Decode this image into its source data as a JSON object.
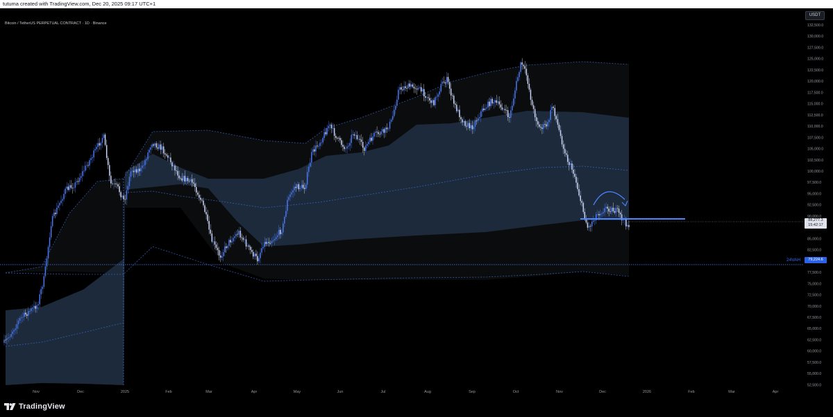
{
  "header": {
    "created_line": "tutuma created with TradingView.com, Dec 20, 2025 09:17 UTC+1"
  },
  "legend": {
    "symbol": "Bitcoin / TetherUS PERPETUAL CONTRACT · 1D · Binance"
  },
  "price_scale": {
    "currency": "USDT",
    "ticks": [
      "132,500.0",
      "130,000.0",
      "127,500.0",
      "125,000.0",
      "122,500.0",
      "120,000.0",
      "117,500.0",
      "115,000.0",
      "112,500.0",
      "110,000.0",
      "107,500.0",
      "105,000.0",
      "102,500.0",
      "100,000.0",
      "97,500.0",
      "95,000.0",
      "92,500.0",
      "90,000.0",
      "87,500.0",
      "85,000.0",
      "82,500.0",
      "80,000.0",
      "77,500.0",
      "75,000.0",
      "72,500.0",
      "70,000.0",
      "67,500.0",
      "65,000.0",
      "62,500.0",
      "60,000.0",
      "57,500.0",
      "55,000.0",
      "52,500.0"
    ],
    "last_price": "88,277.3",
    "countdown": "15:42:17",
    "vah_label": "24VAH",
    "vah_price": "79,224.6"
  },
  "time_axis": {
    "labels": [
      "Nov",
      "Dec",
      "2025",
      "Feb",
      "Mar",
      "Apr",
      "May",
      "Jun",
      "Jul",
      "Aug",
      "Sep",
      "Oct",
      "Nov",
      "Dec",
      "2026",
      "Feb",
      "Mar",
      "Apr"
    ]
  },
  "branding": {
    "logo_text": "TradingView"
  },
  "colors": {
    "background": "#000000",
    "candle": "#4a78f0",
    "band_inner": "#1c2a3b",
    "band_outer": "#0b0c0d",
    "accent_line": "#4d86ff",
    "dashed": "#3a67c9"
  },
  "chart_data": {
    "type": "line",
    "title": "",
    "ylim": [
      51250,
      133750
    ],
    "price_range_hint": "BTC daily, Oct 2024 - Dec 2025",
    "drawn_levels": [
      {
        "name": "24VAH",
        "value": 79224.6
      },
      {
        "name": "horizontal line",
        "value": 88600
      }
    ],
    "last_price": 88277.3
  }
}
